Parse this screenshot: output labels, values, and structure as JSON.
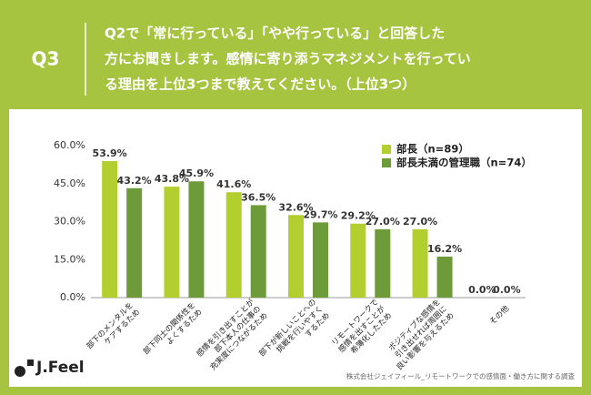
{
  "header": {
    "label": "Q3",
    "lines": [
      "Q2で「常に行っている」「やや行っている」と回答した",
      "方にお聞きします。感情に寄り添うマネジメントを行ってい",
      "る理由を上位3つまで教えてください。（上位3つ）"
    ]
  },
  "chart_data": {
    "type": "bar",
    "categories": [
      "部下のメンタルを\nケアするため",
      "部下同士の関係性を\nよくするため",
      "感情を引き出すことが\n部下本人の仕事の\n充実度につながるため",
      "部下が新しいことへの\n挑戦を行いやすく\nするため",
      "リモートワークで\n感情を出すことが\n希薄化したため",
      "ポジティブな感情を\n引き出せれば周囲に\n良い影響を与えるため",
      "その他"
    ],
    "series": [
      {
        "name": "部長（n=89）",
        "color": "#b3cf2f",
        "values": [
          53.9,
          43.8,
          41.6,
          32.6,
          29.2,
          27.0,
          0.0
        ],
        "value_labels": [
          "53.9%",
          "43.8%",
          "41.6%",
          "32.6%",
          "29.2%",
          "27.0%",
          "0.0%"
        ]
      },
      {
        "name": "部長未満の管理職（n=74）",
        "color": "#6e9b3a",
        "values": [
          43.2,
          45.9,
          36.5,
          29.7,
          27.0,
          16.2,
          0.0
        ],
        "value_labels": [
          "43.2%",
          "45.9%",
          "36.5%",
          "29.7%",
          "27.0%",
          "16.2%",
          "0.0%"
        ]
      }
    ],
    "ylim": [
      0,
      60
    ],
    "yticks": [
      {
        "value": 0,
        "label": "0.0%"
      },
      {
        "value": 15,
        "label": "15.0%"
      },
      {
        "value": 30,
        "label": "30.0%"
      },
      {
        "value": 45,
        "label": "45.0%"
      },
      {
        "value": 60,
        "label": "60.0%"
      }
    ],
    "grid": false
  },
  "footer": {
    "logo": "J.Feel",
    "source": "株式会社ジェイフィール_リモートワークでの感情面・働き方に関する調査"
  }
}
